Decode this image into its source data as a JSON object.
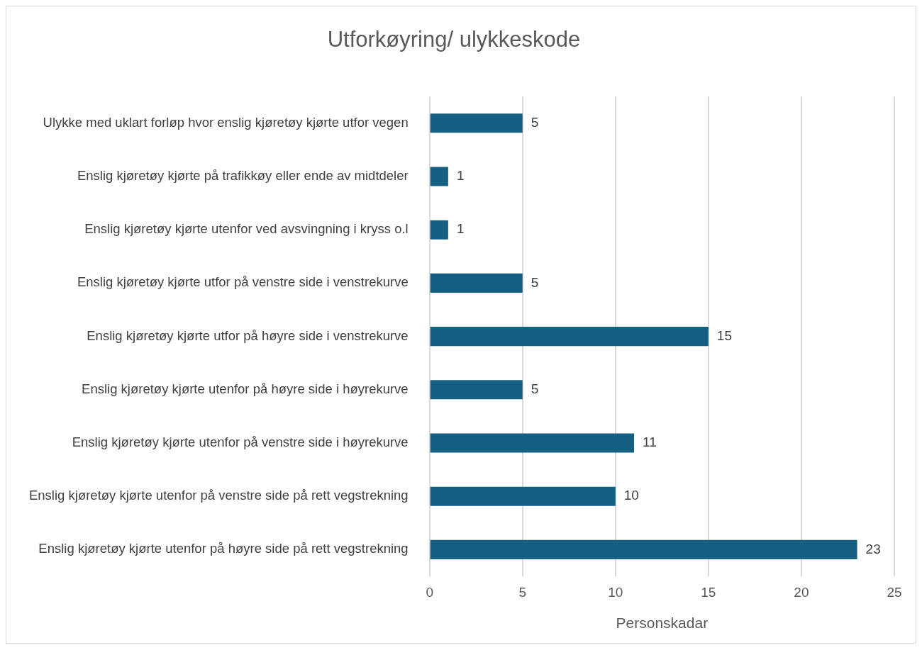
{
  "chart_data": {
    "type": "bar",
    "orientation": "horizontal",
    "title": "Utforkøyring/ ulykkeskode",
    "xlabel": "Personskadar",
    "categories": [
      "Ulykke med uklart forløp hvor enslig kjøretøy kjørte utfor vegen",
      "Enslig kjøretøy kjørte på trafikkøy eller ende av midtdeler",
      "Enslig kjøretøy kjørte utenfor ved avsvingning i kryss o.l",
      "Enslig kjøretøy kjørte utfor på venstre side i venstrekurve",
      "Enslig kjøretøy kjørte utfor på høyre side i venstrekurve",
      "Enslig kjøretøy kjørte utenfor på høyre side i høyrekurve",
      "Enslig kjøretøy kjørte utenfor på venstre side i høyrekurve",
      "Enslig kjøretøy kjørte utenfor på venstre side på rett vegstrekning",
      "Enslig kjøretøy kjørte utenfor på høyre side på rett vegstrekning"
    ],
    "values": [
      5,
      1,
      1,
      5,
      15,
      5,
      11,
      10,
      23
    ],
    "color": "#155f82",
    "xlim": [
      0,
      25
    ],
    "xticks": [
      0,
      5,
      10,
      15,
      20,
      25
    ],
    "grid": "x",
    "data_labels": true,
    "legend": false
  }
}
